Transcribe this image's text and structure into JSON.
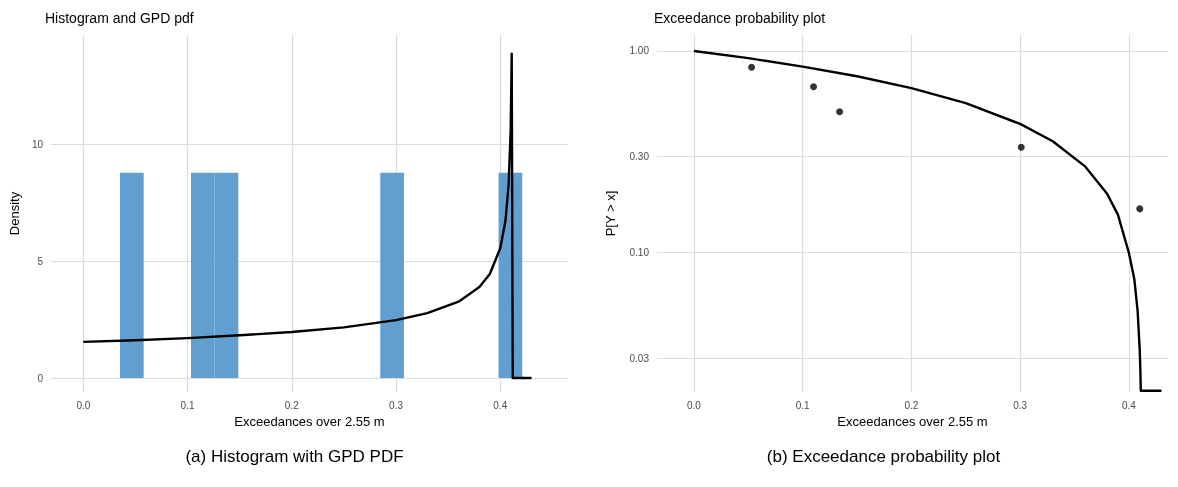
{
  "chart_data": [
    {
      "type": "histogram",
      "title": "Histogram and GPD pdf",
      "xlabel": "Exceedances over 2.55 m",
      "ylabel": "Density",
      "annotations": [
        "(a) Histogram with GPD PDF"
      ],
      "xlim": [
        -0.031,
        0.465
      ],
      "ylim": [
        -0.6,
        14.7
      ],
      "xticks": [
        {
          "value": 0,
          "label": "0.0"
        },
        0.1,
        0.2,
        0.3,
        0.4
      ],
      "yticks": [
        0,
        5,
        10
      ],
      "grid": true,
      "series": [
        {
          "color": "#609fcf",
          "bins": [
            0.0352,
            0.0579,
            0.0806,
            0.1033,
            0.126,
            0.1487,
            0.1714,
            0.1941,
            0.2168,
            0.2395,
            0.2622,
            0.2849,
            0.3076,
            0.3303,
            0.353,
            0.3757,
            0.3984,
            0.4211
          ],
          "values": [
            8.8,
            0,
            0,
            8.8,
            8.8,
            0,
            0,
            0,
            0,
            0,
            0,
            8.8,
            0,
            0,
            0,
            0,
            8.8
          ]
        },
        {
          "type": "line",
          "color": "#000000",
          "x": [
            0,
            0.05,
            0.1,
            0.15,
            0.2,
            0.25,
            0.3,
            0.33,
            0.36,
            0.38,
            0.39,
            0.4,
            0.405,
            0.408,
            0.41,
            0.411,
            0.412,
            0.43
          ],
          "values": [
            1.55,
            1.62,
            1.71,
            1.83,
            1.97,
            2.17,
            2.48,
            2.78,
            3.27,
            3.9,
            4.46,
            5.56,
            6.74,
            8.26,
            10.6,
            13.9,
            0,
            0
          ]
        }
      ]
    },
    {
      "type": "line",
      "title": "Exceedance probability plot",
      "xlabel": "Exceedances over 2.55 m",
      "ylabel": "P[Y > x]",
      "annotations": [
        "(b) Exceedance probability plot"
      ],
      "log": "y",
      "xlim": [
        -0.034,
        0.436
      ],
      "ylim": [
        0.0204,
        1.2
      ],
      "xticks": [
        {
          "value": 0,
          "label": "0.0"
        },
        0.1,
        0.2,
        0.3,
        0.4
      ],
      "yticks": [
        {
          "value": 0.03,
          "label": "0.03"
        },
        {
          "value": 0.1,
          "label": "0.10"
        },
        {
          "value": 0.3,
          "label": "0.30"
        },
        {
          "value": 1,
          "label": "1.00"
        }
      ],
      "grid": true,
      "series": [
        {
          "color": "#000000",
          "x": [
            0,
            0.05,
            0.1,
            0.15,
            0.2,
            0.25,
            0.3,
            0.33,
            0.36,
            0.38,
            0.39,
            0.4,
            0.405,
            0.408,
            0.41,
            0.4105,
            0.411,
            0.43
          ],
          "values": [
            1,
            0.921,
            0.837,
            0.749,
            0.654,
            0.551,
            0.435,
            0.357,
            0.267,
            0.196,
            0.154,
            0.1,
            0.074,
            0.052,
            0.033,
            0.027,
            0.0207,
            0.0207
          ]
        },
        {
          "type": "scatter",
          "color": "#000000",
          "marker": "circle",
          "x": [
            0.053,
            0.11,
            0.134,
            0.301,
            0.41
          ],
          "values": [
            0.83,
            0.665,
            0.5,
            0.333,
            0.165
          ]
        }
      ]
    }
  ]
}
